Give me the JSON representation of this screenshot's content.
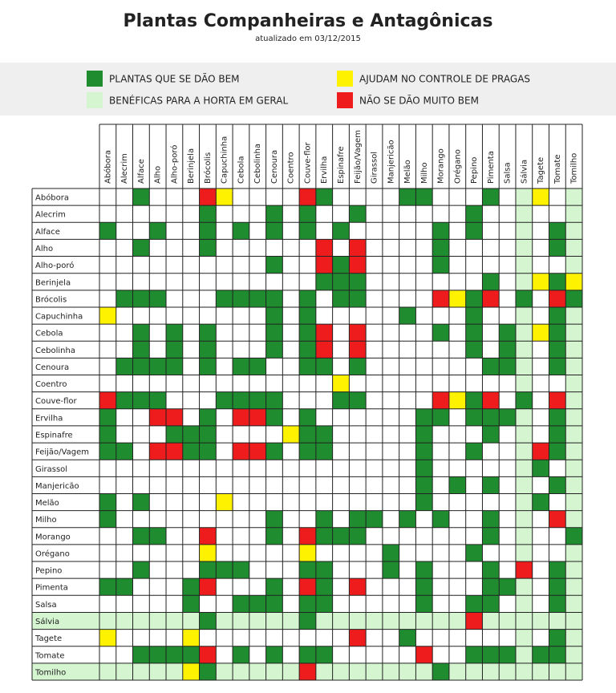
{
  "header": {
    "title": "Plantas Companheiras e Antagônicas",
    "subtitle": "atualizado em 03/12/2015"
  },
  "legend": [
    {
      "key": "good",
      "label": "PLANTAS QUE SE DÃO BEM",
      "color": "#1f8c2f"
    },
    {
      "key": "general",
      "label": "BENÉFICAS PARA A HORTA EM GERAL",
      "color": "#d4f5d0"
    },
    {
      "key": "pest",
      "label": "AJUDAM NO CONTROLE DE PRAGAS",
      "color": "#fff200"
    },
    {
      "key": "bad",
      "label": "NÃO SE DÃO MUITO BEM",
      "color": "#ee1c1c"
    }
  ],
  "table": {
    "columns": [
      "Abóbora",
      "Alecrim",
      "Alface",
      "Alho",
      "Alho-poró",
      "Berinjela",
      "Brócolis",
      "Capuchinha",
      "Cebola",
      "Cebolinha",
      "Cenoura",
      "Coentro",
      "Couve-flor",
      "Ervilha",
      "Espinafre",
      "Feijão/Vagem",
      "Girassol",
      "Manjericão",
      "Melão",
      "Milho",
      "Morango",
      "Orégano",
      "Pepino",
      "Pimenta",
      "Salsa",
      "Sálvia",
      "Tagete",
      "Tomate",
      "Tomilho"
    ],
    "general": [
      25,
      28
    ],
    "rows": [
      {
        "name": "Abóbora",
        "good": [
          2,
          13,
          18,
          19,
          23
        ],
        "pest": [
          7,
          26
        ],
        "bad": [
          6,
          12
        ]
      },
      {
        "name": "Alecrim",
        "good": [
          6,
          10,
          12,
          15,
          22
        ],
        "pest": [],
        "bad": []
      },
      {
        "name": "Alface",
        "good": [
          0,
          3,
          6,
          8,
          10,
          12,
          14,
          20,
          22,
          27
        ],
        "pest": [],
        "bad": []
      },
      {
        "name": "Alho",
        "good": [
          2,
          6,
          20,
          27
        ],
        "pest": [],
        "bad": [
          13,
          15
        ]
      },
      {
        "name": "Alho-poró",
        "good": [
          10,
          14,
          20
        ],
        "pest": [],
        "bad": [
          13,
          15
        ]
      },
      {
        "name": "Berinjela",
        "good": [
          13,
          14,
          15,
          23,
          27
        ],
        "pest": [
          26,
          28
        ],
        "bad": []
      },
      {
        "name": "Brócolis",
        "good": [
          1,
          2,
          3,
          7,
          8,
          9,
          10,
          12,
          14,
          15,
          22,
          25,
          28
        ],
        "pest": [
          21
        ],
        "bad": [
          20,
          23,
          27
        ]
      },
      {
        "name": "Capuchinha",
        "good": [
          10,
          12,
          18,
          22,
          27
        ],
        "pest": [
          0
        ],
        "bad": []
      },
      {
        "name": "Cebola",
        "good": [
          2,
          4,
          6,
          10,
          12,
          20,
          22,
          24,
          27
        ],
        "pest": [
          26
        ],
        "bad": [
          13,
          15
        ]
      },
      {
        "name": "Cebolinha",
        "good": [
          2,
          4,
          6,
          10,
          12,
          22,
          24,
          27
        ],
        "pest": [],
        "bad": [
          13,
          15
        ]
      },
      {
        "name": "Cenoura",
        "good": [
          1,
          2,
          3,
          4,
          6,
          8,
          9,
          12,
          13,
          15,
          23,
          24,
          27
        ],
        "pest": [],
        "bad": []
      },
      {
        "name": "Coentro",
        "good": [],
        "pest": [
          14
        ],
        "bad": []
      },
      {
        "name": "Couve-flor",
        "good": [
          1,
          2,
          3,
          7,
          8,
          9,
          10,
          14,
          15,
          22,
          25
        ],
        "pest": [
          21
        ],
        "bad": [
          0,
          20,
          23,
          27
        ]
      },
      {
        "name": "Ervilha",
        "good": [
          0,
          6,
          10,
          12,
          19,
          20,
          22,
          23,
          24,
          27
        ],
        "pest": [],
        "bad": [
          3,
          4,
          8,
          9
        ]
      },
      {
        "name": "Espinafre",
        "good": [
          0,
          4,
          5,
          6,
          12,
          13,
          19,
          23,
          27
        ],
        "pest": [
          11
        ],
        "bad": []
      },
      {
        "name": "Feijão/Vagem",
        "good": [
          0,
          1,
          5,
          6,
          10,
          12,
          13,
          19,
          22,
          27
        ],
        "pest": [],
        "bad": [
          3,
          4,
          8,
          9,
          26
        ]
      },
      {
        "name": "Girassol",
        "good": [
          19,
          26
        ],
        "pest": [],
        "bad": []
      },
      {
        "name": "Manjericão",
        "good": [
          19,
          21,
          23,
          27
        ],
        "pest": [],
        "bad": []
      },
      {
        "name": "Melão",
        "good": [
          0,
          2,
          19,
          26
        ],
        "pest": [
          7
        ],
        "bad": []
      },
      {
        "name": "Milho",
        "good": [
          0,
          10,
          13,
          15,
          16,
          18,
          20,
          23
        ],
        "pest": [],
        "bad": [
          27
        ]
      },
      {
        "name": "Morango",
        "good": [
          2,
          3,
          10,
          13,
          14,
          15,
          23,
          28
        ],
        "pest": [],
        "bad": [
          6,
          12
        ]
      },
      {
        "name": "Orégano",
        "good": [
          17,
          22
        ],
        "pest": [
          6,
          12
        ],
        "bad": []
      },
      {
        "name": "Pepino",
        "good": [
          2,
          6,
          7,
          8,
          12,
          13,
          17,
          19,
          23,
          27
        ],
        "pest": [],
        "bad": [
          25
        ]
      },
      {
        "name": "Pimenta",
        "good": [
          0,
          1,
          5,
          10,
          13,
          19,
          23,
          24,
          27
        ],
        "pest": [],
        "bad": [
          6,
          12,
          15
        ]
      },
      {
        "name": "Salsa",
        "good": [
          5,
          8,
          9,
          10,
          12,
          13,
          19,
          22,
          23,
          27
        ],
        "pest": [],
        "bad": []
      },
      {
        "name": "Sálvia",
        "good": [
          6,
          12
        ],
        "pest": [],
        "bad": [
          22
        ]
      },
      {
        "name": "Tagete",
        "good": [
          18,
          27
        ],
        "pest": [
          0,
          5
        ],
        "bad": [
          15
        ]
      },
      {
        "name": "Tomate",
        "good": [
          2,
          3,
          4,
          5,
          8,
          10,
          12,
          13,
          22,
          23,
          24,
          26,
          27
        ],
        "pest": [],
        "bad": [
          6,
          19
        ]
      },
      {
        "name": "Tomilho",
        "good": [
          6,
          20
        ],
        "pest": [
          5
        ],
        "bad": [
          12
        ]
      }
    ]
  }
}
